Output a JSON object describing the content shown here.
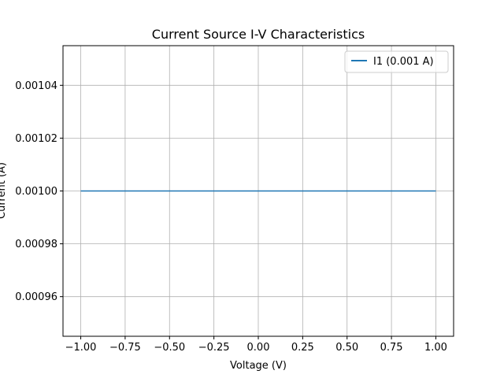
{
  "chart_data": {
    "type": "line",
    "title": "Current Source I-V Characteristics",
    "xlabel": "Voltage (V)",
    "ylabel": "Current (A)",
    "xlim": [
      -1.1,
      1.1
    ],
    "ylim": [
      0.000945,
      0.001055
    ],
    "xticks": [
      -1.0,
      -0.75,
      -0.5,
      -0.25,
      0.0,
      0.25,
      0.5,
      0.75,
      1.0
    ],
    "xtick_labels": [
      "−1.00",
      "−0.75",
      "−0.50",
      "−0.25",
      "0.00",
      "0.25",
      "0.50",
      "0.75",
      "1.00"
    ],
    "yticks": [
      0.00096,
      0.00098,
      0.001,
      0.00102,
      0.00104
    ],
    "ytick_labels": [
      "0.00096",
      "0.00098",
      "0.00100",
      "0.00102",
      "0.00104"
    ],
    "grid": true,
    "legend_position": "top-right",
    "series": [
      {
        "name": "I1 (0.001 A)",
        "color": "#1f77b4",
        "x": [
          -1.0,
          1.0
        ],
        "y": [
          0.001,
          0.001
        ]
      }
    ]
  }
}
